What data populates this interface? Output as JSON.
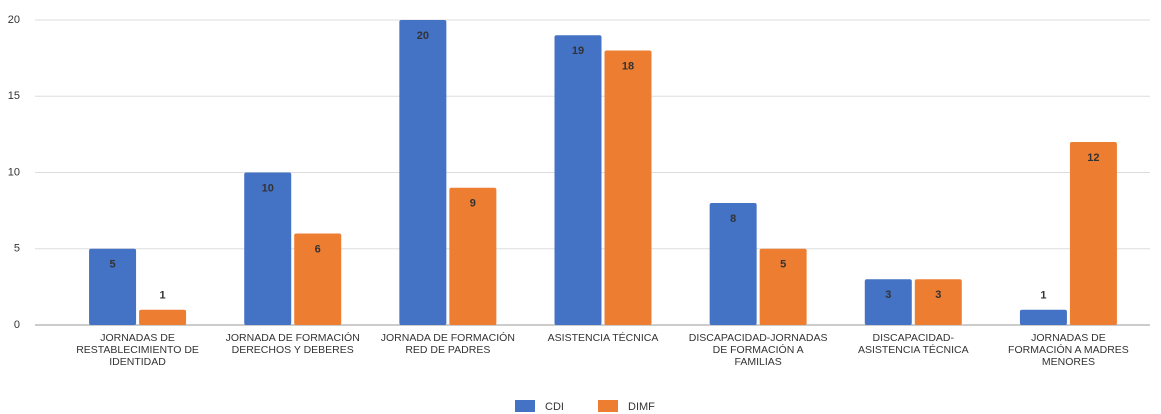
{
  "chart_data": {
    "type": "bar",
    "categories": [
      "JORNADAS DE RESTABLECIMIENTO DE IDENTIDAD",
      "JORNADA DE FORMACIÓN DERECHOS Y DEBERES",
      "JORNADA DE FORMACIÓN RED DE PADRES",
      "ASISTENCIA TÉCNICA",
      "DISCAPACIDAD-JORNADAS DE FORMACIÓN A FAMILIAS",
      "DISCAPACIDAD-ASISTENCIA TÉCNICA",
      "JORNADAS DE FORMACIÓN A MADRES MENORES"
    ],
    "series": [
      {
        "name": "CDI",
        "color": "#4472c4",
        "values": [
          5,
          10,
          20,
          19,
          8,
          3,
          1
        ]
      },
      {
        "name": "DIMF",
        "color": "#ed7d31",
        "values": [
          1,
          6,
          9,
          18,
          5,
          3,
          12
        ]
      }
    ],
    "ylim": [
      0,
      20
    ],
    "yticks": [
      0,
      5,
      10,
      15,
      20
    ],
    "grid": true,
    "legend": "bottom"
  }
}
